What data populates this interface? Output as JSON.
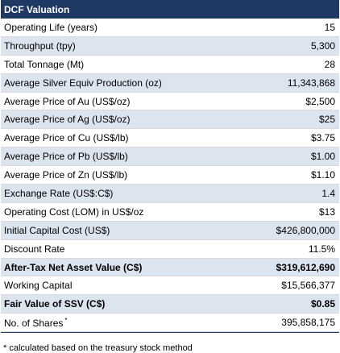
{
  "table": {
    "title": "DCF Valuation",
    "rows": [
      {
        "label": "Operating Life (years)",
        "value": "15",
        "shaded": false,
        "bold": false,
        "sup": ""
      },
      {
        "label": "Throughput (tpy)",
        "value": "5,300",
        "shaded": true,
        "bold": false,
        "sup": ""
      },
      {
        "label": "Total Tonnage (Mt)",
        "value": "28",
        "shaded": false,
        "bold": false,
        "sup": ""
      },
      {
        "label": "Average Silver Equiv Production (oz)",
        "value": "11,343,868",
        "shaded": true,
        "bold": false,
        "sup": ""
      },
      {
        "label": "Average Price of Au (US$/oz)",
        "value": "$2,500",
        "shaded": false,
        "bold": false,
        "sup": ""
      },
      {
        "label": "Average Price of Ag (US$/oz)",
        "value": "$25",
        "shaded": true,
        "bold": false,
        "sup": ""
      },
      {
        "label": "Average Price of Cu (US$/lb)",
        "value": "$3.75",
        "shaded": false,
        "bold": false,
        "sup": ""
      },
      {
        "label": "Average Price of Pb (US$/lb)",
        "value": "$1.00",
        "shaded": true,
        "bold": false,
        "sup": ""
      },
      {
        "label": "Average Price of Zn (US$/lb)",
        "value": "$1.10",
        "shaded": false,
        "bold": false,
        "sup": ""
      },
      {
        "label": "Exchange Rate (US$:C$)",
        "value": "1.4",
        "shaded": true,
        "bold": false,
        "sup": ""
      },
      {
        "label": "Operating Cost (LOM) in US$/oz",
        "value": "$13",
        "shaded": false,
        "bold": false,
        "sup": ""
      },
      {
        "label": "Initial Capital Cost (US$)",
        "value": "$426,800,000",
        "shaded": true,
        "bold": false,
        "sup": ""
      },
      {
        "label": "Discount Rate",
        "value": "11.5%",
        "shaded": false,
        "bold": false,
        "sup": ""
      },
      {
        "label": "After-Tax Net Asset Value (C$)",
        "value": "$319,612,690",
        "shaded": true,
        "bold": true,
        "sup": ""
      },
      {
        "label": "Working Capital",
        "value": "$15,566,377",
        "shaded": false,
        "bold": false,
        "sup": ""
      },
      {
        "label": "Fair Value of SSV (C$)",
        "value": "$0.85",
        "shaded": true,
        "bold": true,
        "sup": ""
      },
      {
        "label": "No. of Shares",
        "value": "395,858,175",
        "shaded": false,
        "bold": false,
        "sup": "*"
      }
    ],
    "footnote": "* calculated based on the treasury stock method"
  },
  "colors": {
    "header_bg": "#1f3864",
    "shaded_row": "#dce4ef"
  }
}
